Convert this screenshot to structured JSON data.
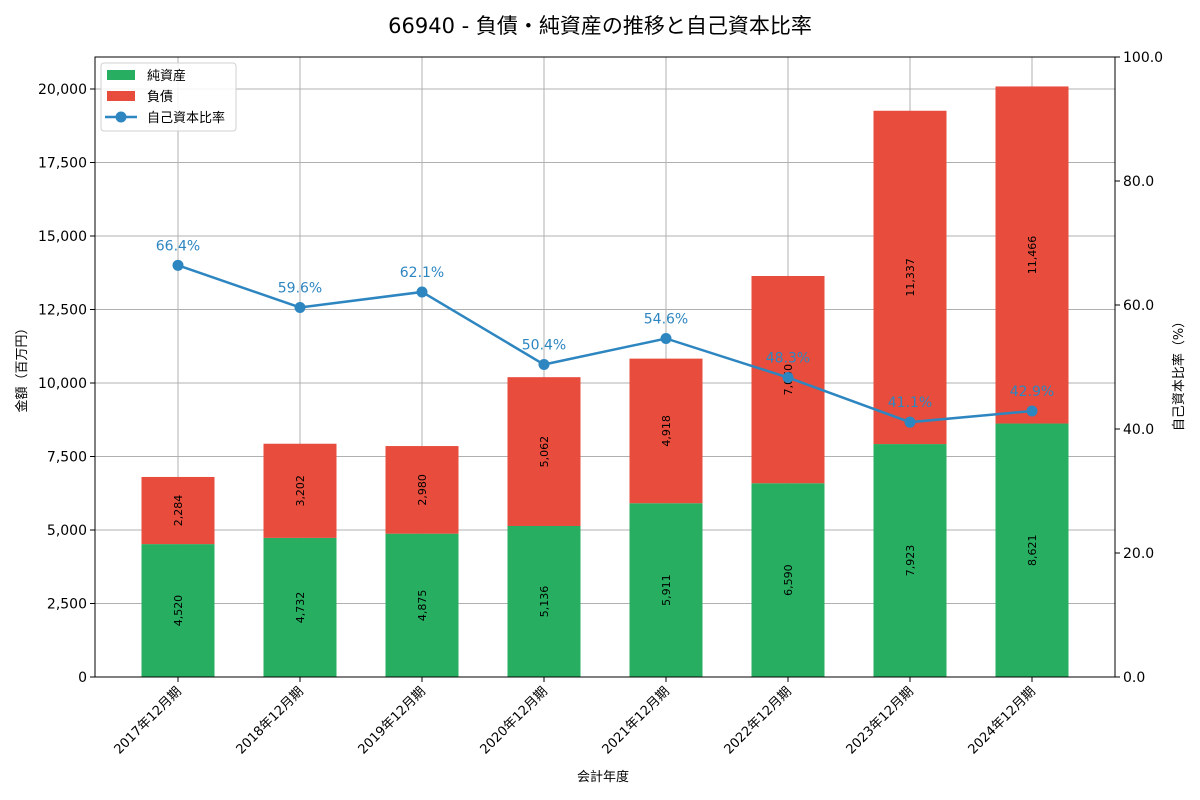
{
  "title": "66940 - 負債・純資産の推移と自己資本比率",
  "colors": {
    "equity": "#27ae60",
    "liabilities": "#e74c3c",
    "ratio": "#2e86c1",
    "grid": "#b0b0b0"
  },
  "legend": {
    "equity": "純資産",
    "liabilities": "負債",
    "ratio": "自己資本比率"
  },
  "axes": {
    "xlabel": "会計年度",
    "ylabel_left": "金額（百万円）",
    "ylabel_right": "自己資本比率（%）",
    "left_ticks": [
      "0",
      "2,500",
      "5,000",
      "7,500",
      "10,000",
      "12,500",
      "15,000",
      "17,500",
      "20,000"
    ],
    "right_ticks": [
      "0.0",
      "20.0",
      "40.0",
      "60.0",
      "80.0",
      "100.0"
    ]
  },
  "chart_data": {
    "type": "bar",
    "stacked": true,
    "title": "66940 - 負債・純資産の推移と自己資本比率",
    "xlabel": "会計年度",
    "ylabel": "金額（百万円）",
    "ylabel_right": "自己資本比率（%）",
    "ylim": [
      0,
      21100
    ],
    "ylim_right": [
      0,
      100
    ],
    "grid": true,
    "legend_position": "upper left",
    "categories": [
      "2017年12月期",
      "2018年12月期",
      "2019年12月期",
      "2020年12月期",
      "2021年12月期",
      "2022年12月期",
      "2023年12月期",
      "2024年12月期"
    ],
    "series": [
      {
        "name": "純資産",
        "type": "bar",
        "axis": "left",
        "values": [
          4520,
          4732,
          4875,
          5136,
          5911,
          6590,
          7923,
          8621
        ],
        "labels": [
          "4,520",
          "4,732",
          "4,875",
          "5,136",
          "5,911",
          "6,590",
          "7,923",
          "8,621"
        ]
      },
      {
        "name": "負債",
        "type": "bar",
        "axis": "left",
        "values": [
          2284,
          3202,
          2980,
          5062,
          4918,
          7050,
          11337,
          11466
        ],
        "labels": [
          "2,284",
          "3,202",
          "2,980",
          "5,062",
          "4,918",
          "7,050",
          "11,337",
          "11,466"
        ]
      },
      {
        "name": "自己資本比率",
        "type": "line",
        "axis": "right",
        "values": [
          66.4,
          59.6,
          62.1,
          50.4,
          54.6,
          48.3,
          41.1,
          42.9
        ],
        "labels": [
          "66.4%",
          "59.6%",
          "62.1%",
          "50.4%",
          "54.6%",
          "48.3%",
          "41.1%",
          "42.9%"
        ]
      }
    ]
  }
}
